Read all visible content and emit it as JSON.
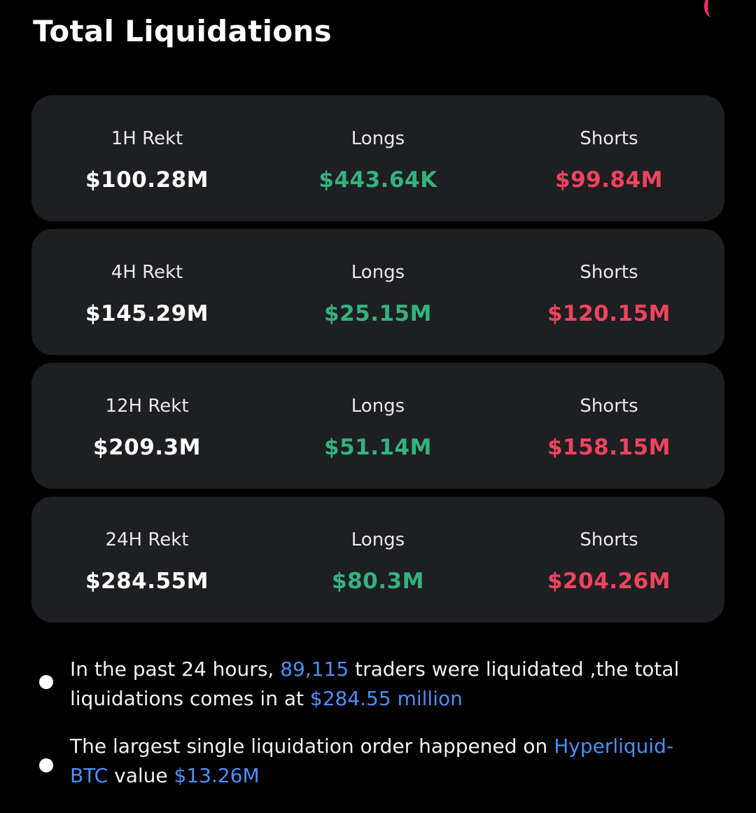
{
  "header": {
    "title": "Total Liquidations"
  },
  "colors": {
    "background": "#000000",
    "card": "#1e1f22",
    "longs": "#34b27d",
    "shorts": "#f0445e",
    "highlight": "#4f8ff7",
    "corner_mark": "#ff2d6f"
  },
  "cards": [
    {
      "period_label": "1H Rekt",
      "total": "$100.28M",
      "longs_label": "Longs",
      "longs": "$443.64K",
      "shorts_label": "Shorts",
      "shorts": "$99.84M"
    },
    {
      "period_label": "4H Rekt",
      "total": "$145.29M",
      "longs_label": "Longs",
      "longs": "$25.15M",
      "shorts_label": "Shorts",
      "shorts": "$120.15M"
    },
    {
      "period_label": "12H Rekt",
      "total": "$209.3M",
      "longs_label": "Longs",
      "longs": "$51.14M",
      "shorts_label": "Shorts",
      "shorts": "$158.15M"
    },
    {
      "period_label": "24H Rekt",
      "total": "$284.55M",
      "longs_label": "Longs",
      "longs": "$80.3M",
      "shorts_label": "Shorts",
      "shorts": "$204.26M"
    }
  ],
  "notes": [
    {
      "text_1": "In the past 24 hours, ",
      "traders_count": "89,115",
      "text_2": " traders were liquidated ,the total liquidations comes in at ",
      "total_amount": "$284.55 million"
    },
    {
      "text_1": "The largest single liquidation order happened on ",
      "pair": "Hyperliquid-BTC",
      "text_2": " value ",
      "amount": "$13.26M"
    }
  ]
}
